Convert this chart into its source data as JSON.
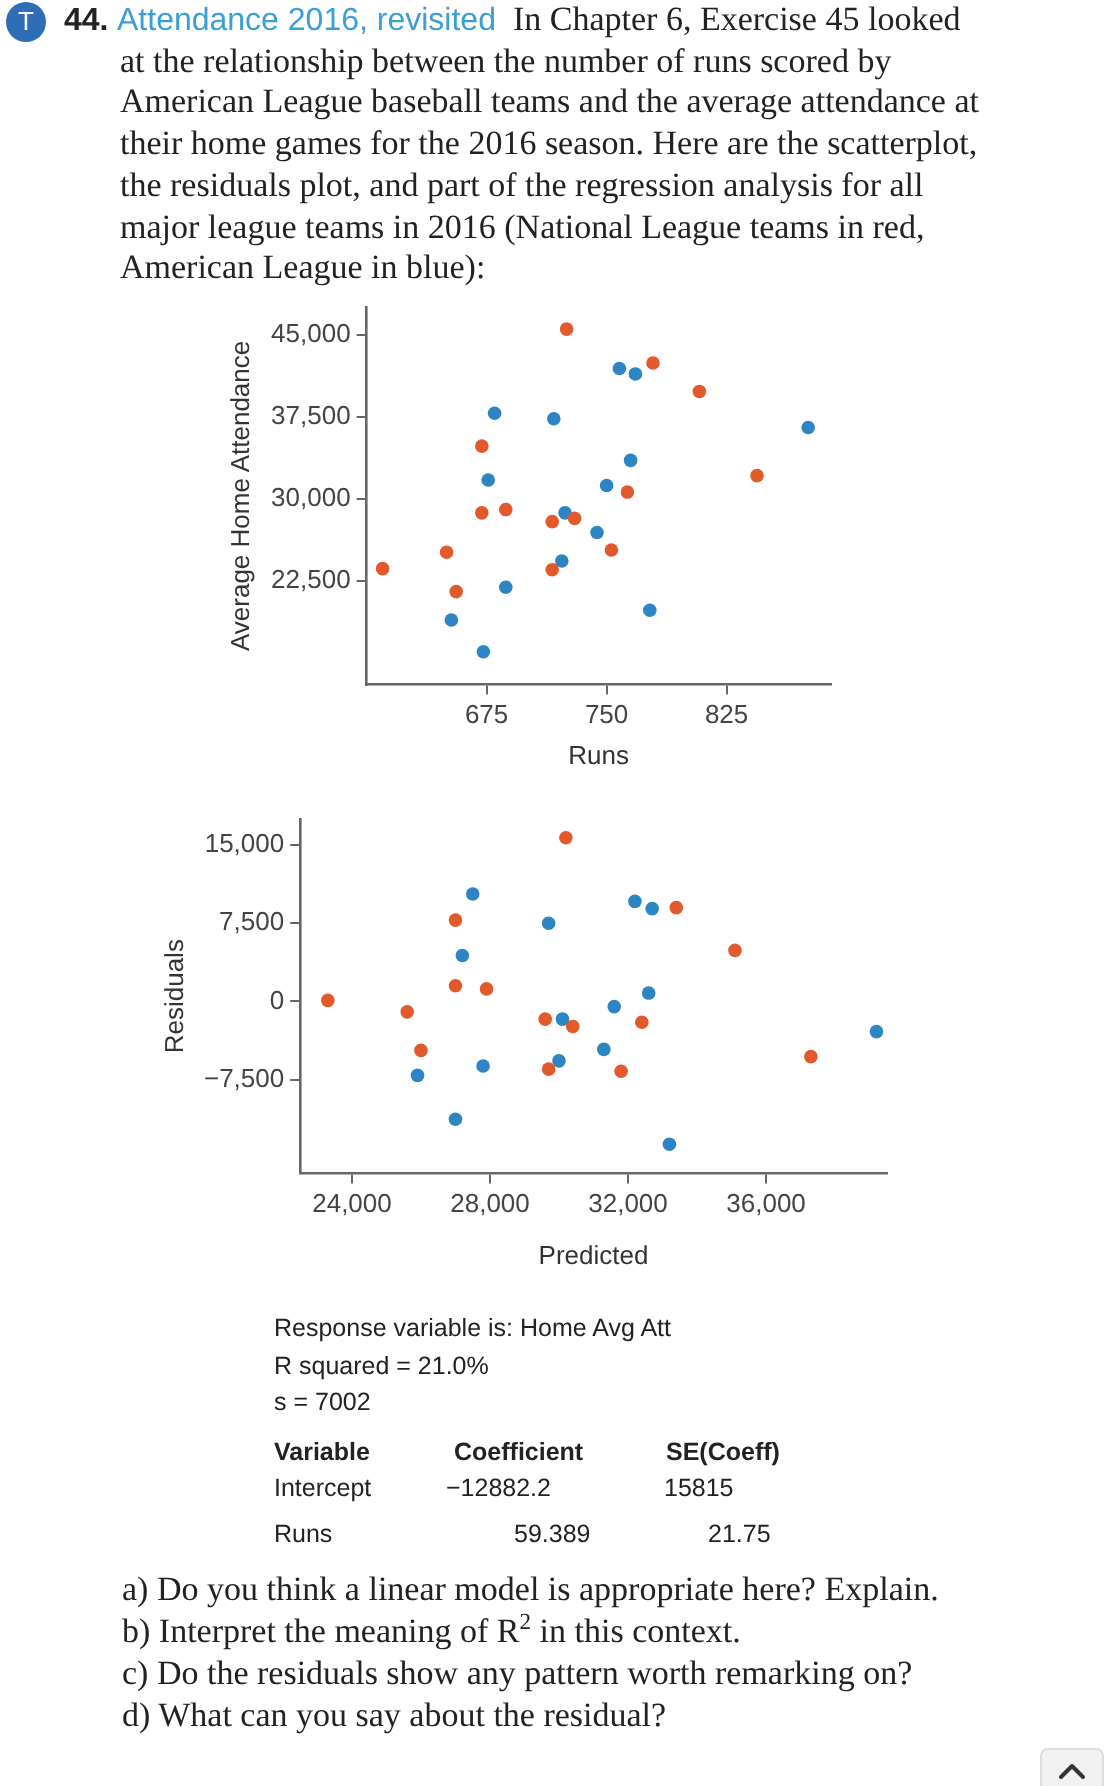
{
  "chart_data": [
    {
      "type": "scatter",
      "title": "Attendance 2016, revisited",
      "subtitle": "In Chapter 6, Exercise 45 looked at the relationship between the number of runs scored by American League baseball teams and the average attendance at their home games for the 2016 season. Here are the scatterplot, the residuals plot, and part of the regression analysis for all major league teams in 2016 (National League teams in red, American League in blue):",
      "annotations": [
        "T",
        "44."
      ],
      "xlabel": "Runs",
      "ylabel": "Average Home Attendance",
      "xlim": [
        600,
        890
      ],
      "xticks": [
        675,
        750,
        825
      ],
      "ylim": [
        13000,
        47500
      ],
      "yticks": [
        {
          "value": 22500,
          "label": "22,500"
        },
        {
          "value": 30000,
          "label": "30,000"
        },
        {
          "value": 37500,
          "label": "37,500"
        },
        {
          "value": 45000,
          "label": "45,000"
        }
      ],
      "marker": "circle",
      "series": [
        {
          "color": "#e25a2c",
          "x": [
            725,
            779,
            808,
            672,
            844,
            763,
            672,
            687,
            716,
            730,
            650,
            753,
            610,
            716,
            656
          ],
          "values": [
            45500,
            42400,
            39800,
            34800,
            32100,
            30600,
            28700,
            29000,
            27900,
            28200,
            25100,
            25300,
            23600,
            23500,
            21500
          ]
        },
        {
          "color": "#2d86c3",
          "x": [
            758,
            768,
            680,
            717,
            876,
            765,
            676,
            750,
            724,
            744,
            722,
            687,
            777,
            653,
            673
          ],
          "values": [
            41900,
            41400,
            37800,
            37300,
            36500,
            33500,
            31700,
            31200,
            28700,
            26900,
            24300,
            21900,
            19800,
            18900,
            16000
          ]
        }
      ]
    },
    {
      "type": "scatter",
      "xlabel": "Predicted",
      "ylabel": "Residuals",
      "xlim": [
        22500,
        39500
      ],
      "xticks": [
        {
          "value": 24000,
          "label": "24,000"
        },
        {
          "value": 28000,
          "label": "28,000"
        },
        {
          "value": 32000,
          "label": "32,000"
        },
        {
          "value": 36000,
          "label": "36,000"
        }
      ],
      "ylim": [
        -16500,
        17500
      ],
      "yticks": [
        {
          "value": -7500,
          "label": "−7,500"
        },
        0,
        {
          "value": 7500,
          "label": "7,500"
        },
        {
          "value": 15000,
          "label": "15,000"
        }
      ],
      "marker": "circle",
      "series": [
        {
          "color": "#e25a2c",
          "x": [
            30200,
            33400,
            35100,
            27000,
            27000,
            27900,
            23300,
            25600,
            29600,
            30400,
            32400,
            26000,
            29700,
            31800,
            37300
          ],
          "values": [
            15700,
            9000,
            4900,
            7800,
            1500,
            1200,
            100,
            -1000,
            -1700,
            -2400,
            -2000,
            -4700,
            -6500,
            -6700,
            -5300
          ]
        },
        {
          "color": "#2d86c3",
          "x": [
            27500,
            32200,
            32700,
            29700,
            27200,
            32600,
            31600,
            30100,
            39200,
            31300,
            30000,
            27800,
            25900,
            27000,
            33200
          ],
          "values": [
            10300,
            9600,
            8900,
            7500,
            4400,
            800,
            -500,
            -1700,
            -2900,
            -4600,
            -5700,
            -6200,
            -7100,
            -11300,
            -13700
          ]
        }
      ],
      "annotations": [
        "Response variable is: Home Avg Att",
        "R squared = 21.0%",
        "s = 7002",
        "Variable",
        "Coefficient",
        "SE(Coeff)",
        "Intercept",
        "−12882.2",
        "15815",
        "Runs",
        "59.389",
        "21.75",
        "a) Do you think a linear model is appropriate here? Explain.",
        "b) Interpret the meaning of R$^{2}$ in this context.",
        "c) Do the residuals show any pattern worth remarking on?",
        "d) What can you say about the residual?"
      ]
    }
  ]
}
